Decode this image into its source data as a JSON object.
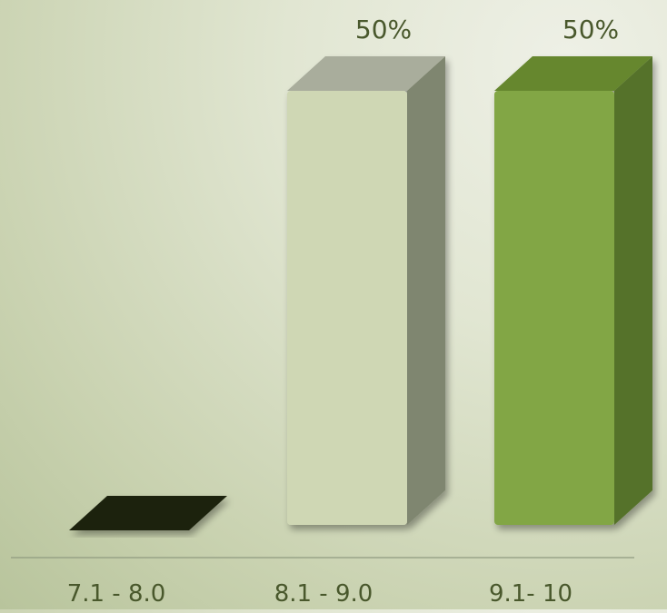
{
  "chart_data": {
    "type": "bar",
    "title": "",
    "xlabel": "",
    "ylabel": "",
    "categories": [
      "7.1 - 8.0",
      "8.1 - 9.0",
      "9.1- 10"
    ],
    "values": [
      0,
      50,
      50
    ],
    "data_labels": [
      "",
      "50%",
      "50%"
    ],
    "unit": "%",
    "ylim": [
      0,
      50
    ],
    "grid": false,
    "legend": "none",
    "style": "3d-column",
    "colors": {
      "bars": [
        {
          "front": "#1e2410",
          "side": "#141809",
          "top": "#272e16"
        },
        {
          "front": "#cfd7b4",
          "side": "#7f8670",
          "top": "#a9ad9c"
        },
        {
          "front": "#82a644",
          "side": "#55722b",
          "top": "#66872f"
        }
      ],
      "axis_line": "#8f9a80",
      "label_text": "#49582c"
    }
  }
}
